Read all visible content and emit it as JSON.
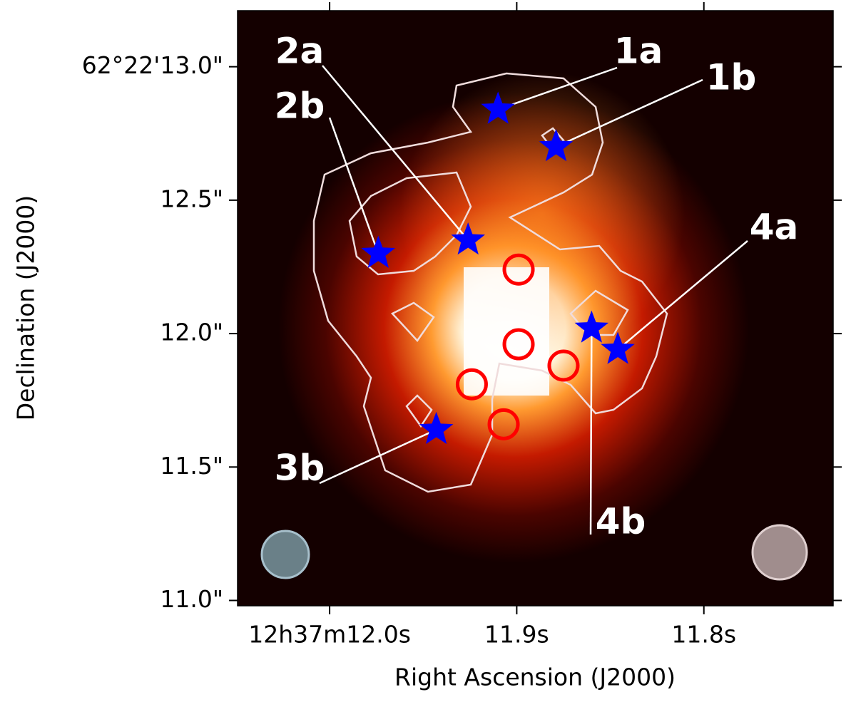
{
  "chart_data": {
    "type": "scatter",
    "xlabel": "Right Ascension (J2000)",
    "ylabel": "Declination (J2000)",
    "xlim": [
      12.0492,
      11.7309
    ],
    "ylim": [
      10.98,
      13.21
    ],
    "xticks": [
      {
        "value": 12.0,
        "label": "12h37m12.0s"
      },
      {
        "value": 11.9,
        "label": "11.9s"
      },
      {
        "value": 11.8,
        "label": "11.8s"
      }
    ],
    "yticks": [
      {
        "value": 11.0,
        "label": "11.0\""
      },
      {
        "value": 11.5,
        "label": "11.5\""
      },
      {
        "value": 12.0,
        "label": "12.0\""
      },
      {
        "value": 12.5,
        "label": "12.5\""
      },
      {
        "value": 13.0,
        "label": "62°22'13.0\""
      }
    ],
    "series": [
      {
        "marker": "star",
        "color": "#0000ff",
        "x": [
          11.91,
          11.879,
          11.926,
          11.974,
          11.86,
          11.846,
          11.943
        ],
        "values": [
          12.84,
          12.7,
          12.35,
          12.3,
          12.02,
          11.94,
          11.64
        ]
      },
      {
        "marker": "circle",
        "color": "#ff0000",
        "x": [
          11.899,
          11.899,
          11.875,
          11.924,
          11.907
        ],
        "values": [
          12.24,
          11.96,
          11.88,
          11.81,
          11.66
        ]
      }
    ],
    "annotations": [
      "1a",
      "1b",
      "2a",
      "2b",
      "3b",
      "4a",
      "4b"
    ]
  }
}
